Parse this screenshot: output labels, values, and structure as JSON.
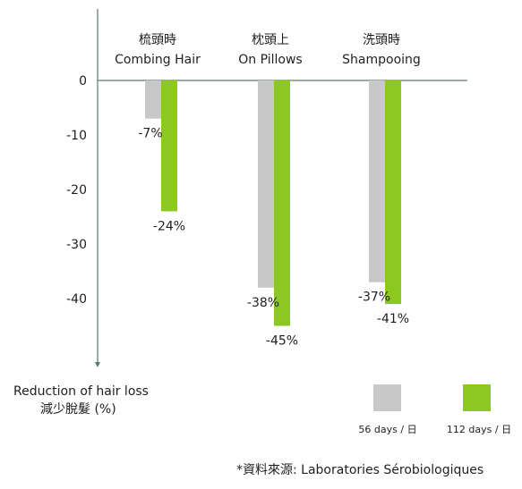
{
  "chart_data": {
    "type": "bar",
    "categories": [
      {
        "label_zh": "梳頭時",
        "label_en": "Combing Hair"
      },
      {
        "label_zh": "枕頭上",
        "label_en": "On Pillows"
      },
      {
        "label_zh": "洗頭時",
        "label_en": "Shampooing"
      }
    ],
    "series": [
      {
        "name": "56 days / 日",
        "color": "#c8c8c8",
        "values": [
          -7,
          -38,
          -37
        ],
        "labels": [
          "-7%",
          "-38%",
          "-37%"
        ]
      },
      {
        "name": "112 days / 日",
        "color": "#8cc820",
        "values": [
          -24,
          -45,
          -41
        ],
        "labels": [
          "-24%",
          "-45%",
          "-41%"
        ]
      }
    ],
    "yticks": [
      0,
      -10,
      -20,
      -30,
      -40
    ],
    "ytick_labels": [
      "0",
      "-10",
      "-20",
      "-30",
      "-40"
    ],
    "ylim": [
      0,
      -50
    ],
    "ylabel_en": "Reduction of hair loss",
    "ylabel_zh": "減少脫髮 (%)",
    "axis_color": "#5a7a6a",
    "grid": false,
    "legend_position": "bottom-right",
    "source_note": "*資料來源: Laboratories Sérobiologiques"
  }
}
